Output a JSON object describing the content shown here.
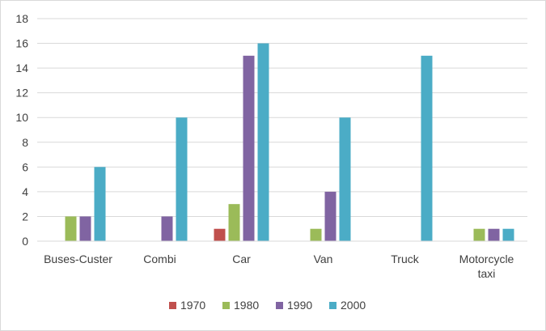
{
  "chart_data": {
    "type": "bar",
    "title": "",
    "xlabel": "",
    "ylabel": "",
    "ylim": [
      0,
      18
    ],
    "yticks": [
      0,
      2,
      4,
      6,
      8,
      10,
      12,
      14,
      16,
      18
    ],
    "grid": true,
    "legend_position": "bottom",
    "categories": [
      [
        "Buses-Custer"
      ],
      [
        "Combi"
      ],
      [
        "Car"
      ],
      [
        "Van"
      ],
      [
        "Truck"
      ],
      [
        "Motorcycle",
        "taxi"
      ]
    ],
    "series": [
      {
        "name": "1970",
        "color": "#c0504d",
        "values": [
          0,
          0,
          1,
          0,
          0,
          0
        ]
      },
      {
        "name": "1980",
        "color": "#9bbb59",
        "values": [
          2,
          0,
          3,
          1,
          0,
          1
        ]
      },
      {
        "name": "1990",
        "color": "#8064a2",
        "values": [
          2,
          2,
          15,
          4,
          0,
          1
        ]
      },
      {
        "name": "2000",
        "color": "#4bacc6",
        "values": [
          6,
          10,
          16,
          10,
          15,
          1
        ]
      }
    ]
  }
}
